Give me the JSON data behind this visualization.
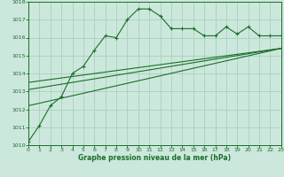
{
  "title": "Graphe pression niveau de la mer (hPa)",
  "bg_color": "#cce8dc",
  "grid_color": "#aacfbe",
  "line_color": "#1a6e2a",
  "x_min": 0,
  "x_max": 23,
  "y_min": 1010,
  "y_max": 1018,
  "main_series": [
    [
      0,
      1010.2
    ],
    [
      1,
      1011.1
    ],
    [
      2,
      1012.2
    ],
    [
      3,
      1012.7
    ],
    [
      4,
      1014.0
    ],
    [
      5,
      1014.4
    ],
    [
      6,
      1015.3
    ],
    [
      7,
      1016.1
    ],
    [
      8,
      1016.0
    ],
    [
      9,
      1017.0
    ],
    [
      10,
      1017.6
    ],
    [
      11,
      1017.6
    ],
    [
      12,
      1017.2
    ],
    [
      13,
      1016.5
    ],
    [
      14,
      1016.5
    ],
    [
      15,
      1016.5
    ],
    [
      16,
      1016.1
    ],
    [
      17,
      1016.1
    ],
    [
      18,
      1016.6
    ],
    [
      19,
      1016.2
    ],
    [
      20,
      1016.6
    ],
    [
      21,
      1016.1
    ],
    [
      22,
      1016.1
    ],
    [
      23,
      1016.1
    ]
  ],
  "linear_series": [
    [
      0,
      1012.2
    ],
    [
      23,
      1015.4
    ]
  ],
  "linear_series2": [
    [
      0,
      1013.1
    ],
    [
      23,
      1015.4
    ]
  ],
  "linear_series3": [
    [
      0,
      1013.5
    ],
    [
      23,
      1015.4
    ]
  ]
}
